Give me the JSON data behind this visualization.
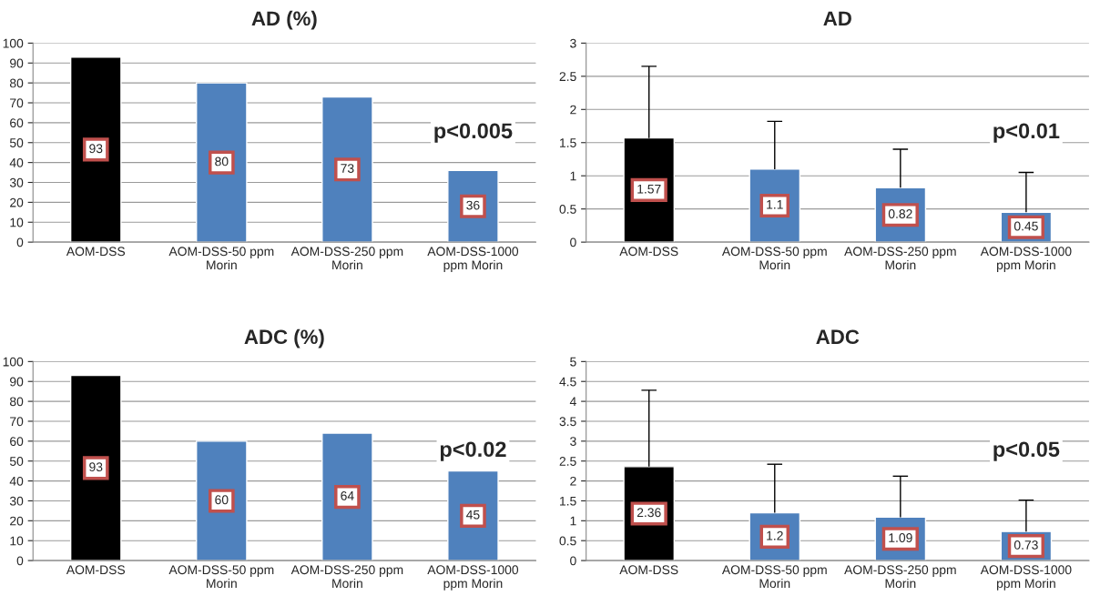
{
  "chart_data": [
    {
      "type": "bar",
      "title": "AD (%)",
      "categories": [
        "AOM-DSS",
        "AOM-DSS-50 ppm\nMorin",
        "AOM-DSS-250 ppm\nMorin",
        "AOM-DSS-1000\nppm Morin"
      ],
      "values": [
        93,
        80,
        73,
        36
      ],
      "colors": [
        "#000000",
        "#4f81bd",
        "#4f81bd",
        "#4f81bd"
      ],
      "ylim": [
        0,
        100
      ],
      "yticks": [
        0,
        10,
        20,
        30,
        40,
        50,
        60,
        70,
        80,
        90,
        100
      ],
      "grid": "y",
      "data_labels": true,
      "annotations": [
        "p<0.005"
      ]
    },
    {
      "type": "bar",
      "title": "AD",
      "categories": [
        "AOM-DSS",
        "AOM-DSS-50 ppm\nMorin",
        "AOM-DSS-250 ppm\nMorin",
        "AOM-DSS-1000\nppm Morin"
      ],
      "values": [
        1.57,
        1.1,
        0.82,
        0.45
      ],
      "errors": [
        [
          1.57,
          2.65
        ],
        [
          1.1,
          1.82
        ],
        [
          0.82,
          1.4
        ],
        [
          0.45,
          1.05
        ]
      ],
      "colors": [
        "#000000",
        "#4f81bd",
        "#4f81bd",
        "#4f81bd"
      ],
      "ylim": [
        0,
        3
      ],
      "yticks": [
        0,
        0.5,
        1,
        1.5,
        2,
        2.5,
        3
      ],
      "grid": "y",
      "data_labels": true,
      "annotations": [
        "p<0.01"
      ]
    },
    {
      "type": "bar",
      "title": "ADC (%)",
      "categories": [
        "AOM-DSS",
        "AOM-DSS-50 ppm\nMorin",
        "AOM-DSS-250 ppm\nMorin",
        "AOM-DSS-1000\nppm Morin"
      ],
      "values": [
        93,
        60,
        64,
        45
      ],
      "colors": [
        "#000000",
        "#4f81bd",
        "#4f81bd",
        "#4f81bd"
      ],
      "ylim": [
        0,
        100
      ],
      "yticks": [
        0,
        10,
        20,
        30,
        40,
        50,
        60,
        70,
        80,
        90,
        100
      ],
      "grid": "y",
      "data_labels": true,
      "annotations": [
        "p<0.02"
      ]
    },
    {
      "type": "bar",
      "title": "ADC",
      "categories": [
        "AOM-DSS",
        "AOM-DSS-50 ppm\nMorin",
        "AOM-DSS-250 ppm\nMorin",
        "AOM-DSS-1000\nppm Morin"
      ],
      "values": [
        2.36,
        1.2,
        1.09,
        0.73
      ],
      "errors": [
        [
          2.36,
          4.28
        ],
        [
          1.2,
          2.42
        ],
        [
          1.09,
          2.12
        ],
        [
          0.73,
          1.52
        ]
      ],
      "colors": [
        "#000000",
        "#4f81bd",
        "#4f81bd",
        "#4f81bd"
      ],
      "ylim": [
        0,
        5
      ],
      "yticks": [
        0,
        0.5,
        1,
        1.5,
        2,
        2.5,
        3,
        3.5,
        4,
        4.5,
        5
      ],
      "grid": "y",
      "data_labels": true,
      "annotations": [
        "p<0.05"
      ]
    }
  ]
}
